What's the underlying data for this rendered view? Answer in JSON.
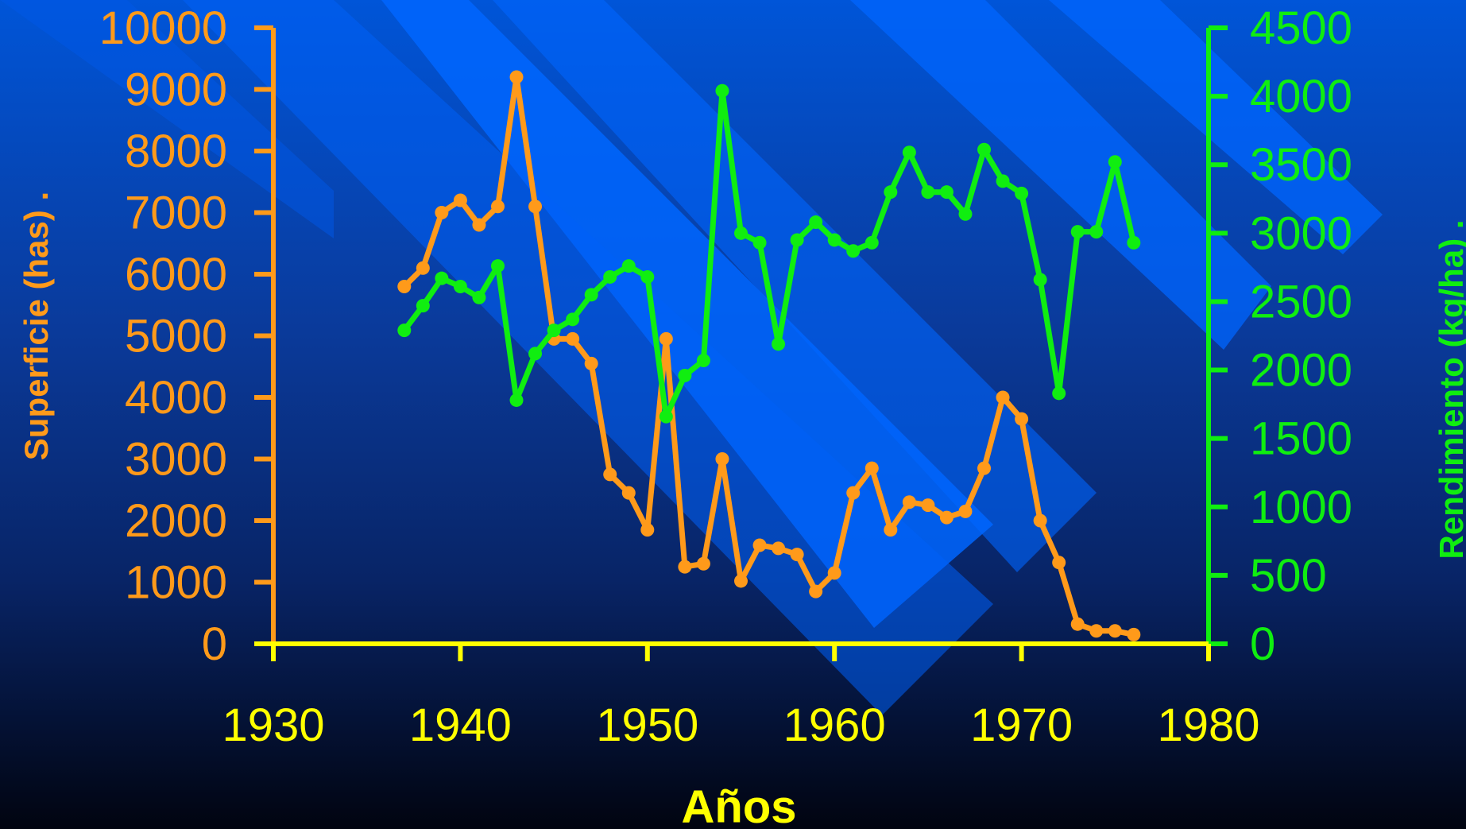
{
  "chart_data": {
    "type": "line",
    "title": "",
    "xlabel": "Años",
    "ylabel_left": "Superficie (has) .",
    "ylabel_right": "Rendimiento (kg/ha) .",
    "xlim": [
      1930,
      1980
    ],
    "ylim_left": [
      0,
      10000
    ],
    "ylim_right": [
      0,
      4500
    ],
    "x_ticks": [
      1930,
      1940,
      1950,
      1960,
      1970,
      1980
    ],
    "y_ticks_left": [
      0,
      1000,
      2000,
      3000,
      4000,
      5000,
      6000,
      7000,
      8000,
      9000,
      10000
    ],
    "y_ticks_right": [
      0,
      500,
      1000,
      1500,
      2000,
      2500,
      3000,
      3500,
      4000,
      4500
    ],
    "grid": false,
    "colors": {
      "superficie": "#ff9a1a",
      "rendimiento": "#10ee10",
      "x_axis": "#ffff00",
      "left_axis": "#ff9a1a",
      "right_axis": "#10ee10"
    },
    "series": [
      {
        "key": "superficie",
        "axis": "left",
        "x": [
          1937,
          1938,
          1939,
          1940,
          1941,
          1942,
          1943,
          1944,
          1945,
          1946,
          1947,
          1948,
          1949,
          1950,
          1951,
          1952,
          1953,
          1954,
          1955,
          1956,
          1957,
          1958,
          1959,
          1960,
          1961,
          1962,
          1963,
          1964,
          1965,
          1966,
          1967,
          1968,
          1969,
          1970,
          1971,
          1972,
          1973,
          1974,
          1975,
          1976
        ],
        "values": [
          5800,
          6100,
          7000,
          7200,
          6800,
          7100,
          9200,
          7100,
          4950,
          4950,
          4550,
          2750,
          2450,
          1850,
          4950,
          1250,
          1300,
          3000,
          1020,
          1600,
          1550,
          1450,
          850,
          1150,
          2450,
          2850,
          1850,
          2300,
          2250,
          2050,
          2150,
          2850,
          4000,
          3650,
          2000,
          1320,
          320,
          210,
          210,
          150
        ]
      },
      {
        "key": "rendimiento",
        "axis": "right",
        "x": [
          1937,
          1938,
          1939,
          1940,
          1941,
          1942,
          1943,
          1944,
          1945,
          1946,
          1947,
          1948,
          1949,
          1950,
          1951,
          1952,
          1953,
          1954,
          1955,
          1956,
          1957,
          1958,
          1959,
          1960,
          1961,
          1962,
          1963,
          1964,
          1965,
          1966,
          1967,
          1968,
          1969,
          1970,
          1971,
          1972,
          1973,
          1974,
          1975,
          1976
        ],
        "values": [
          2290,
          2470,
          2670,
          2610,
          2530,
          2760,
          1780,
          2120,
          2290,
          2370,
          2550,
          2680,
          2760,
          2680,
          1660,
          1960,
          2070,
          4040,
          3000,
          2930,
          2190,
          2950,
          3080,
          2950,
          2870,
          2930,
          3300,
          3590,
          3300,
          3300,
          3140,
          3610,
          3380,
          3290,
          2660,
          1830,
          3010,
          3010,
          3520,
          2930
        ]
      }
    ]
  }
}
